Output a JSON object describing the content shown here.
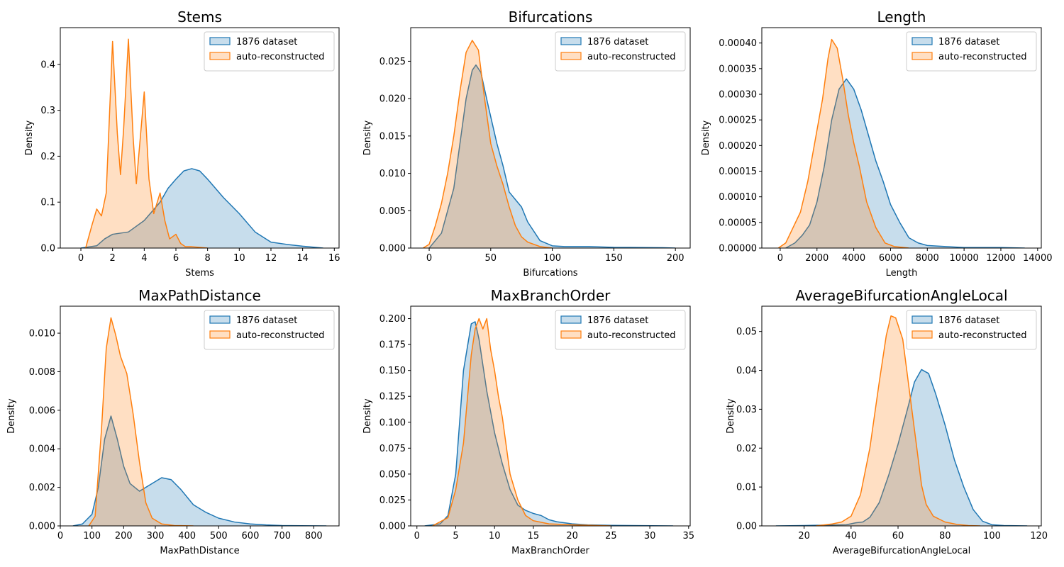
{
  "colors": {
    "series_1": "#1f77b4",
    "series_2": "#ff7f0e",
    "fill_opacity": 0.25
  },
  "chart_data": [
    {
      "type": "area",
      "title": "Stems",
      "xlabel": "Stems",
      "ylabel": "Density",
      "xlim": [
        -1.3,
        16.3
      ],
      "ylim": [
        0,
        0.48
      ],
      "xticks": [
        0,
        2,
        4,
        6,
        8,
        10,
        12,
        14,
        16
      ],
      "xtick_labels": [
        "0",
        "2",
        "4",
        "6",
        "8",
        "10",
        "12",
        "14",
        "16"
      ],
      "yticks": [
        0,
        0.1,
        0.2,
        0.3,
        0.4
      ],
      "ytick_labels": [
        "0.0",
        "0.1",
        "0.2",
        "0.3",
        "0.4"
      ],
      "legend": "upper right",
      "series": [
        {
          "name": "1876 dataset",
          "x": [
            0,
            1,
            1.5,
            2,
            3,
            4,
            5,
            5.5,
            6,
            6.5,
            7,
            7.5,
            8,
            9,
            10,
            11,
            12,
            13,
            14,
            15.3
          ],
          "y": [
            0,
            0.005,
            0.02,
            0.03,
            0.035,
            0.06,
            0.1,
            0.13,
            0.15,
            0.168,
            0.173,
            0.168,
            0.15,
            0.11,
            0.075,
            0.035,
            0.013,
            0.008,
            0.004,
            0
          ]
        },
        {
          "name": "auto-reconstructed",
          "x": [
            0.3,
            0.7,
            1,
            1.3,
            1.6,
            2,
            2.3,
            2.5,
            2.7,
            3,
            3.3,
            3.5,
            3.7,
            4,
            4.3,
            4.6,
            5,
            5.3,
            5.6,
            6,
            6.3,
            6.6,
            7,
            8
          ],
          "y": [
            0,
            0.05,
            0.085,
            0.07,
            0.12,
            0.45,
            0.25,
            0.16,
            0.26,
            0.455,
            0.24,
            0.14,
            0.22,
            0.34,
            0.15,
            0.075,
            0.12,
            0.06,
            0.02,
            0.03,
            0.01,
            0.003,
            0.003,
            0
          ]
        }
      ]
    },
    {
      "type": "area",
      "title": "Bifurcations",
      "xlabel": "Bifurcations",
      "ylabel": "Density",
      "xlim": [
        -15,
        212
      ],
      "ylim": [
        0,
        0.0295
      ],
      "xticks": [
        0,
        50,
        100,
        150,
        200
      ],
      "xtick_labels": [
        "0",
        "50",
        "100",
        "150",
        "200"
      ],
      "yticks": [
        0,
        0.005,
        0.01,
        0.015,
        0.02,
        0.025
      ],
      "ytick_labels": [
        "0.000",
        "0.005",
        "0.010",
        "0.015",
        "0.020",
        "0.025"
      ],
      "legend": "upper right",
      "series": [
        {
          "name": "1876 dataset",
          "x": [
            0,
            10,
            20,
            25,
            30,
            35,
            38,
            42,
            48,
            55,
            60,
            65,
            70,
            75,
            80,
            90,
            100,
            110,
            130,
            150,
            190,
            200
          ],
          "y": [
            0,
            0.002,
            0.008,
            0.014,
            0.02,
            0.0238,
            0.0245,
            0.0235,
            0.019,
            0.014,
            0.011,
            0.0075,
            0.0065,
            0.0055,
            0.0035,
            0.001,
            0.0003,
            0.0002,
            0.0002,
            0.0001,
            5e-05,
            0
          ]
        },
        {
          "name": "auto-reconstructed",
          "x": [
            -5,
            0,
            5,
            10,
            15,
            20,
            25,
            30,
            35,
            40,
            45,
            50,
            55,
            60,
            65,
            70,
            75,
            80,
            90,
            100
          ],
          "y": [
            0,
            0.0005,
            0.003,
            0.006,
            0.01,
            0.015,
            0.021,
            0.0262,
            0.0278,
            0.0265,
            0.02,
            0.014,
            0.011,
            0.0085,
            0.0055,
            0.003,
            0.0015,
            0.0008,
            0.0002,
            0
          ]
        }
      ]
    },
    {
      "type": "area",
      "title": "Length",
      "xlabel": "Length",
      "ylabel": "Density",
      "xlim": [
        -1000,
        14200
      ],
      "ylim": [
        0,
        0.00043
      ],
      "xticks": [
        0,
        2000,
        4000,
        6000,
        8000,
        10000,
        12000,
        14000
      ],
      "xtick_labels": [
        "0",
        "2000",
        "4000",
        "6000",
        "8000",
        "10000",
        "12000",
        "14000"
      ],
      "yticks": [
        0,
        5e-05,
        0.0001,
        0.00015,
        0.0002,
        0.00025,
        0.0003,
        0.00035,
        0.0004
      ],
      "ytick_labels": [
        "0.00000",
        "0.00005",
        "0.00010",
        "0.00015",
        "0.00020",
        "0.00025",
        "0.00030",
        "0.00035",
        "0.00040"
      ],
      "legend": "upper right",
      "series": [
        {
          "name": "1876 dataset",
          "x": [
            300,
            800,
            1200,
            1600,
            2000,
            2400,
            2800,
            3200,
            3600,
            4000,
            4400,
            4800,
            5200,
            5600,
            6000,
            6500,
            7000,
            7500,
            8000,
            9000,
            10000,
            11000,
            12000,
            13300
          ],
          "y": [
            0,
            1e-05,
            2.5e-05,
            4.5e-05,
            9e-05,
            0.00016,
            0.00025,
            0.00031,
            0.00033,
            0.00031,
            0.00027,
            0.00022,
            0.00017,
            0.00013,
            8.5e-05,
            5e-05,
            2e-05,
            1e-05,
            5e-06,
            3e-06,
            1e-06,
            1e-06,
            1e-06,
            0
          ]
        },
        {
          "name": "auto-reconstructed",
          "x": [
            -100,
            300,
            700,
            1100,
            1500,
            1900,
            2300,
            2600,
            2800,
            3100,
            3400,
            3700,
            4000,
            4300,
            4700,
            5200,
            5700,
            6200,
            7000
          ],
          "y": [
            0,
            1e-05,
            4e-05,
            7e-05,
            0.00013,
            0.00021,
            0.00029,
            0.00037,
            0.000407,
            0.00039,
            0.00033,
            0.00026,
            0.000205,
            0.00016,
            9e-05,
            4e-05,
            1e-05,
            3e-06,
            0
          ]
        }
      ]
    },
    {
      "type": "area",
      "title": "MaxPathDistance",
      "xlabel": "MaxPathDistance",
      "ylabel": "Density",
      "xlim": [
        0,
        880
      ],
      "ylim": [
        0,
        0.0114
      ],
      "xticks": [
        0,
        100,
        200,
        300,
        400,
        500,
        600,
        700,
        800
      ],
      "xtick_labels": [
        "0",
        "100",
        "200",
        "300",
        "400",
        "500",
        "600",
        "700",
        "800"
      ],
      "yticks": [
        0,
        0.002,
        0.004,
        0.006,
        0.008,
        0.01
      ],
      "ytick_labels": [
        "0.000",
        "0.002",
        "0.004",
        "0.006",
        "0.008",
        "0.010"
      ],
      "legend": "upper right",
      "series": [
        {
          "name": "1876 dataset",
          "x": [
            40,
            70,
            100,
            120,
            140,
            160,
            180,
            200,
            220,
            250,
            280,
            320,
            350,
            380,
            420,
            460,
            500,
            550,
            600,
            650,
            700,
            760,
            840
          ],
          "y": [
            0,
            0.0001,
            0.0006,
            0.002,
            0.0045,
            0.0057,
            0.0045,
            0.0031,
            0.0022,
            0.0018,
            0.0021,
            0.0025,
            0.0024,
            0.0019,
            0.0011,
            0.0007,
            0.0004,
            0.0002,
            0.0001,
            5e-05,
            2e-05,
            1e-05,
            0
          ]
        },
        {
          "name": "auto-reconstructed",
          "x": [
            90,
            110,
            130,
            145,
            160,
            175,
            190,
            210,
            230,
            250,
            270,
            290,
            320,
            360,
            420
          ],
          "y": [
            0,
            0.0005,
            0.005,
            0.0092,
            0.0108,
            0.0099,
            0.0088,
            0.0079,
            0.0058,
            0.0033,
            0.0012,
            0.0004,
            0.0001,
            2e-05,
            0
          ]
        }
      ]
    },
    {
      "type": "area",
      "title": "MaxBranchOrder",
      "xlabel": "MaxBranchOrder",
      "ylabel": "Density",
      "xlim": [
        -0.8,
        35.2
      ],
      "ylim": [
        0,
        0.212
      ],
      "xticks": [
        0,
        5,
        10,
        15,
        20,
        25,
        30,
        35
      ],
      "xtick_labels": [
        "0",
        "5",
        "10",
        "15",
        "20",
        "25",
        "30",
        "35"
      ],
      "yticks": [
        0,
        0.025,
        0.05,
        0.075,
        0.1,
        0.125,
        0.15,
        0.175,
        0.2
      ],
      "ytick_labels": [
        "0.000",
        "0.025",
        "0.050",
        "0.075",
        "0.100",
        "0.125",
        "0.150",
        "0.175",
        "0.200"
      ],
      "legend": "upper right",
      "series": [
        {
          "name": "1876 dataset",
          "x": [
            1,
            3,
            4,
            5,
            6,
            7,
            7.5,
            8,
            9,
            10,
            11,
            12,
            13,
            14,
            15,
            16,
            17,
            18,
            20,
            22,
            25,
            33
          ],
          "y": [
            0,
            0.002,
            0.01,
            0.05,
            0.15,
            0.195,
            0.197,
            0.18,
            0.13,
            0.09,
            0.06,
            0.035,
            0.02,
            0.015,
            0.012,
            0.01,
            0.006,
            0.004,
            0.002,
            0.001,
            0.0005,
            0
          ]
        },
        {
          "name": "auto-reconstructed",
          "x": [
            2,
            4,
            5,
            6,
            7,
            7.5,
            8,
            8.5,
            9,
            9.5,
            10,
            10.5,
            11,
            12,
            13,
            14,
            15,
            17,
            20,
            25
          ],
          "y": [
            0,
            0.008,
            0.035,
            0.08,
            0.165,
            0.19,
            0.2,
            0.19,
            0.2,
            0.17,
            0.15,
            0.125,
            0.105,
            0.05,
            0.025,
            0.01,
            0.005,
            0.002,
            0.001,
            0
          ]
        }
      ]
    },
    {
      "type": "area",
      "title": "AverageBifurcationAngleLocal",
      "xlabel": "AverageBifurcationAngleLocal",
      "ylabel": "Density",
      "xlim": [
        2,
        121
      ],
      "ylim": [
        0,
        0.0565
      ],
      "xticks": [
        20,
        40,
        60,
        80,
        100,
        120
      ],
      "xtick_labels": [
        "20",
        "40",
        "60",
        "80",
        "100",
        "120"
      ],
      "yticks": [
        0,
        0.01,
        0.02,
        0.03,
        0.04,
        0.05
      ],
      "ytick_labels": [
        "0.00",
        "0.01",
        "0.02",
        "0.03",
        "0.04",
        "0.05"
      ],
      "legend": "upper right",
      "series": [
        {
          "name": "1876 dataset",
          "x": [
            8,
            20,
            30,
            38,
            42,
            45,
            48,
            52,
            56,
            60,
            64,
            67,
            70,
            73,
            76,
            80,
            84,
            88,
            92,
            96,
            100,
            105,
            115
          ],
          "y": [
            0,
            0.0001,
            0.0002,
            0.0003,
            0.0008,
            0.001,
            0.0022,
            0.006,
            0.013,
            0.021,
            0.03,
            0.037,
            0.0402,
            0.0392,
            0.034,
            0.026,
            0.017,
            0.01,
            0.0042,
            0.0012,
            0.0003,
            0.0001,
            0
          ]
        },
        {
          "name": "auto-reconstructed",
          "x": [
            25,
            32,
            36,
            40,
            44,
            48,
            52,
            55,
            57,
            59,
            62,
            65,
            68,
            70,
            72,
            75,
            80,
            85,
            90,
            95
          ],
          "y": [
            0,
            0.0005,
            0.001,
            0.0025,
            0.008,
            0.02,
            0.037,
            0.049,
            0.054,
            0.0535,
            0.048,
            0.034,
            0.02,
            0.0105,
            0.0055,
            0.0025,
            0.001,
            0.0004,
            0.0001,
            0
          ]
        }
      ]
    }
  ]
}
